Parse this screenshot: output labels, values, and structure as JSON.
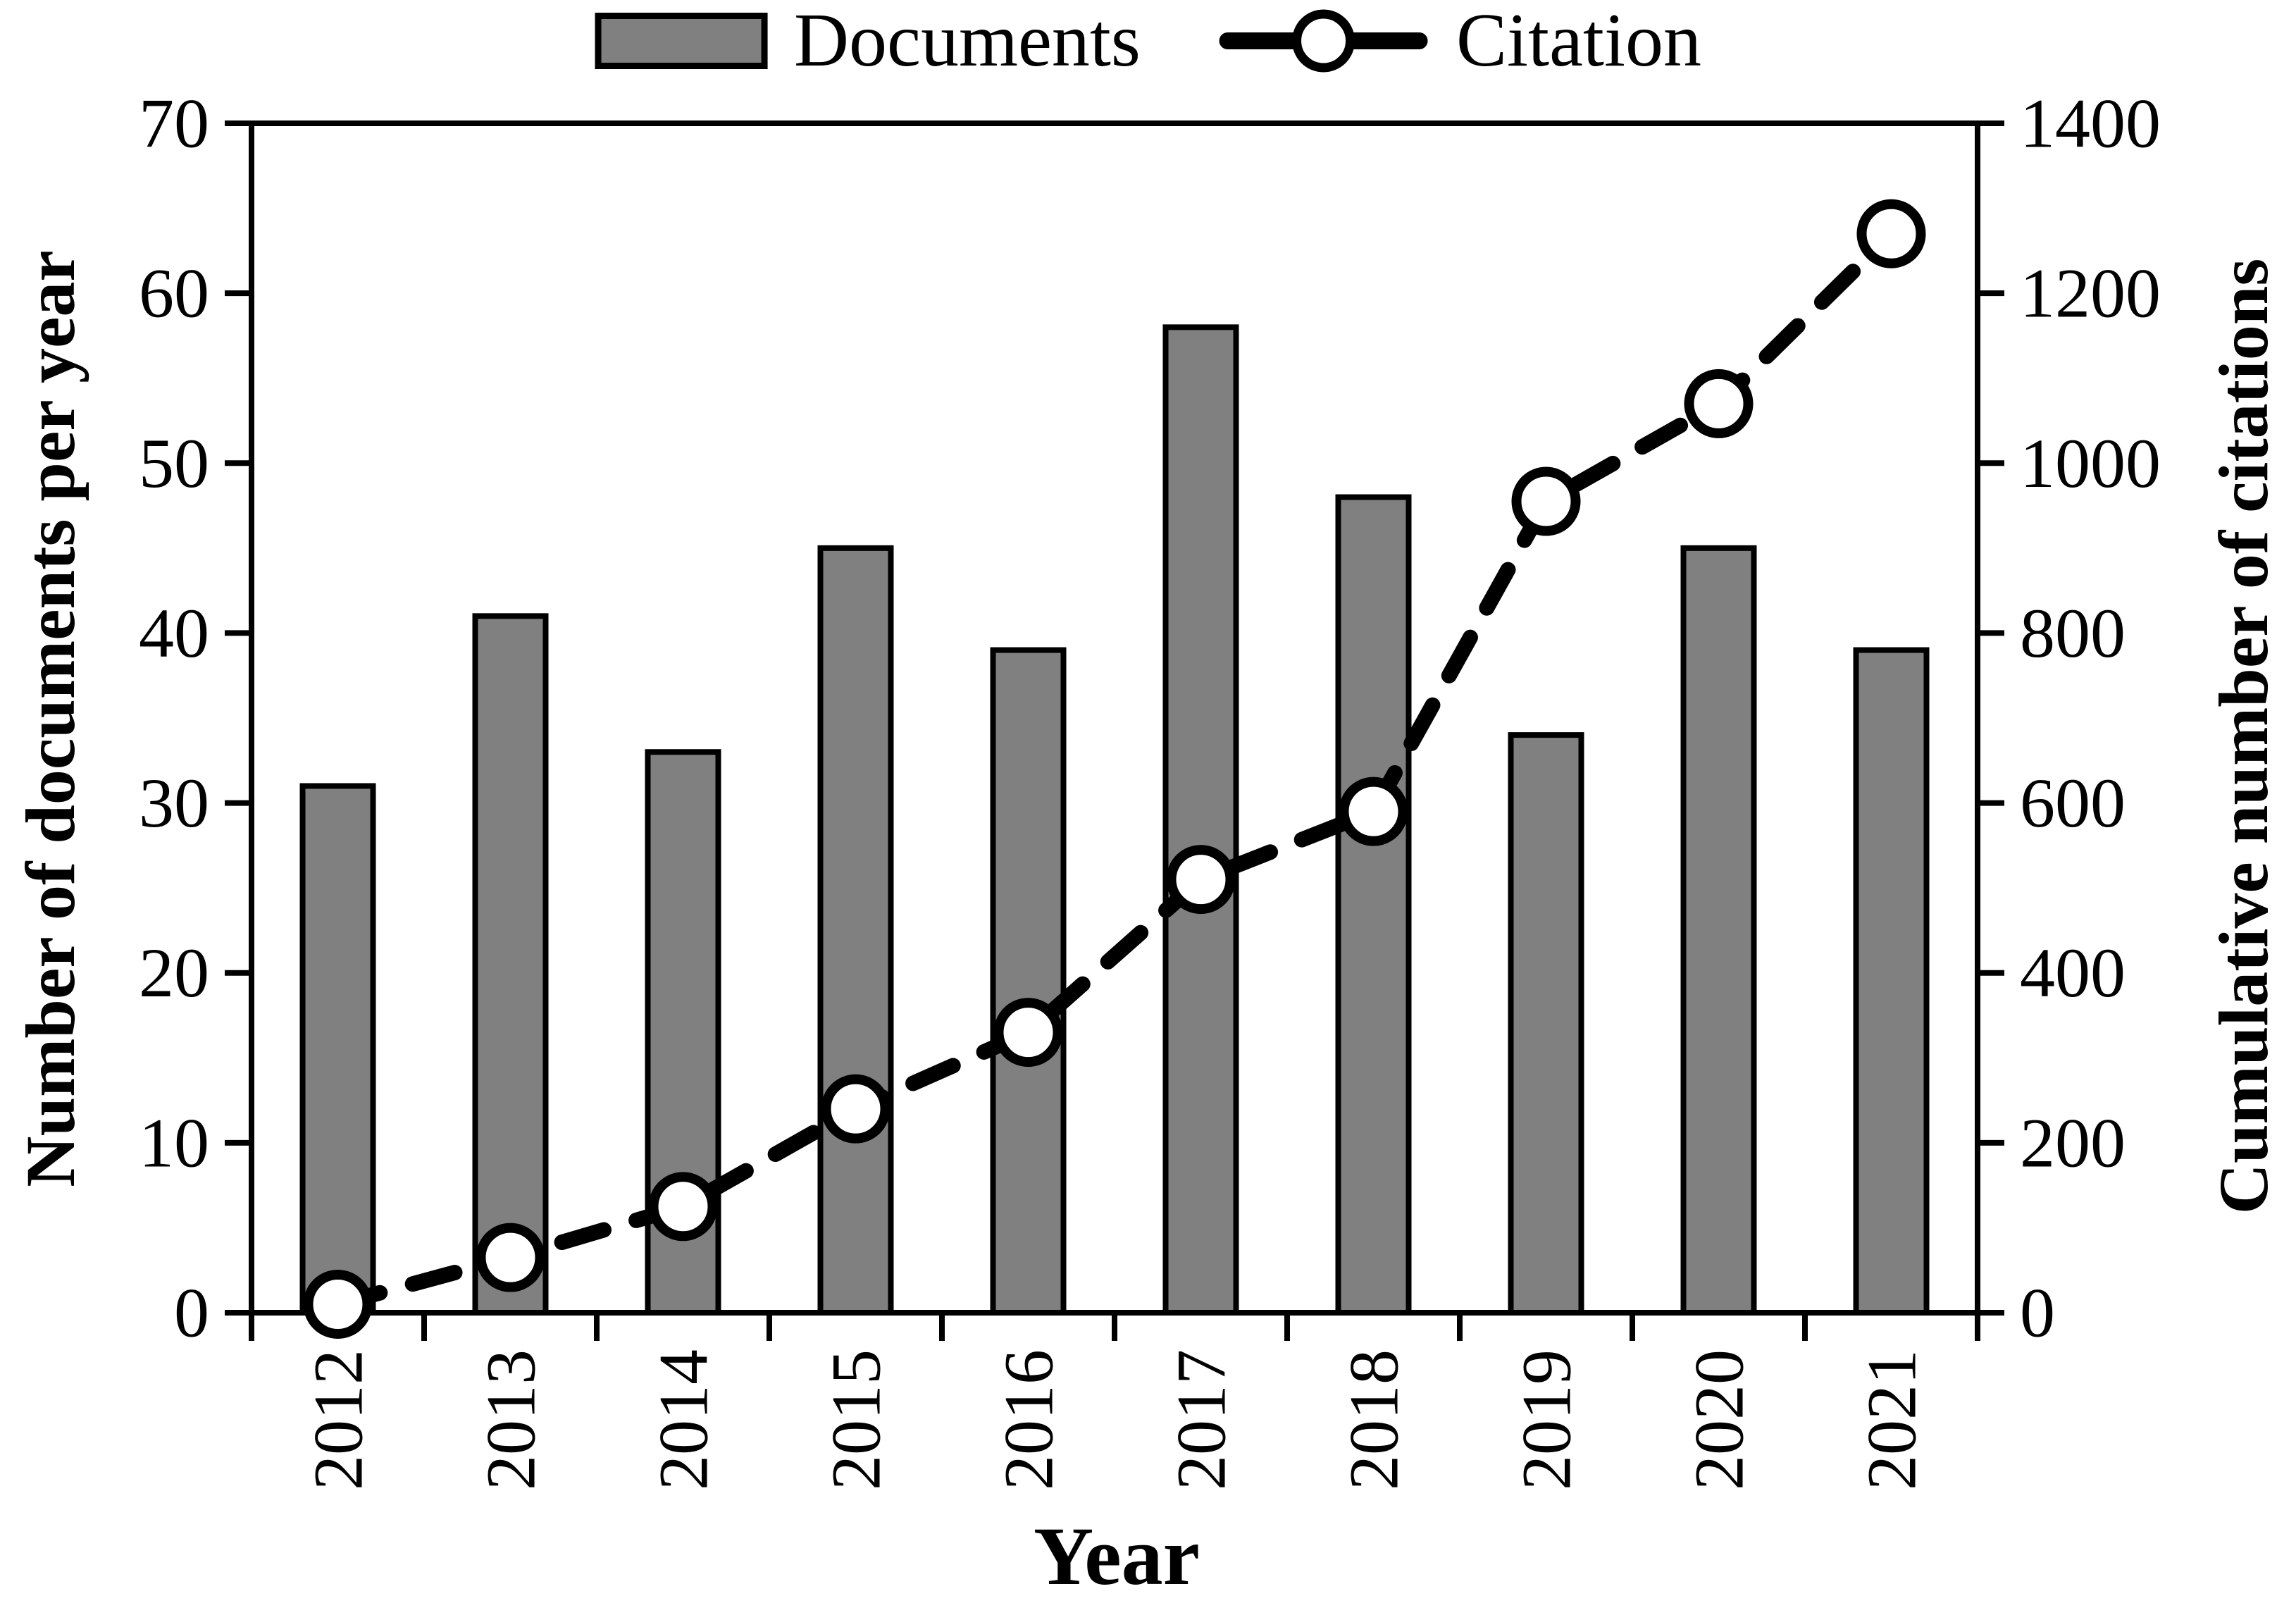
{
  "chart_data": {
    "type": "bar+line combo",
    "categories": [
      "2012",
      "2013",
      "2014",
      "2015",
      "2016",
      "2017",
      "2018",
      "2019",
      "2020",
      "2021"
    ],
    "series": [
      {
        "name": "Documents",
        "type": "bar",
        "axis": "left",
        "values": [
          31,
          41,
          33,
          45,
          39,
          58,
          48,
          34,
          45,
          39
        ]
      },
      {
        "name": "Citation",
        "type": "line",
        "axis": "right",
        "style": "dashed",
        "marker": "open-circle",
        "values": [
          10,
          65,
          125,
          240,
          330,
          510,
          590,
          955,
          1070,
          1270
        ]
      }
    ],
    "title": "",
    "xlabel": "Year",
    "ylabel_left": "Number of documents per year",
    "ylabel_right": "Cumulative number of citations",
    "ylim_left": [
      0,
      70
    ],
    "ylim_right": [
      0,
      1400
    ],
    "yticks_left": [
      0,
      10,
      20,
      30,
      40,
      50,
      60,
      70
    ],
    "yticks_right": [
      0,
      200,
      400,
      600,
      800,
      1000,
      1200,
      1400
    ],
    "grid": false,
    "legend_position": "top-center"
  },
  "legend": {
    "documents_label": "Documents",
    "citation_label": "Citation"
  },
  "axes": {
    "x_title": "Year",
    "left_title": "Number of documents per year",
    "right_title": "Cumulative number of citations"
  },
  "colors": {
    "bar_fill": "#808080",
    "bar_border": "#000000",
    "line": "#000000",
    "marker_fill": "#ffffff",
    "axis": "#000000",
    "background": "#ffffff"
  }
}
